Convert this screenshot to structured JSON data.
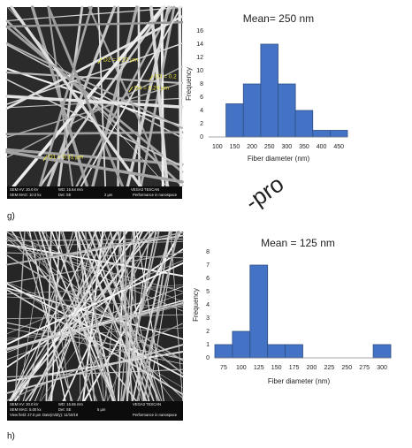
{
  "chart_data": [
    {
      "type": "bar",
      "title": "Mean= 250 nm",
      "x_label": "Fiber diameter (nm)",
      "y_label": "Frequency",
      "categories": [
        "100",
        "150",
        "200",
        "250",
        "300",
        "350",
        "400",
        "450"
      ],
      "values": [
        0,
        5,
        8,
        14,
        8,
        4,
        1,
        1
      ],
      "color": "#4472c4",
      "ylim": [
        0,
        16
      ],
      "yticks": [
        0,
        2,
        4,
        6,
        8,
        10,
        12,
        14,
        16
      ],
      "grid": false
    },
    {
      "type": "bar",
      "title": "Mean = 125 nm",
      "x_label": "Fiber diameter (nm)",
      "y_label": "Frequency",
      "categories": [
        "75",
        "100",
        "125",
        "150",
        "175",
        "200",
        "225",
        "250",
        "275",
        "300"
      ],
      "values": [
        1,
        2,
        7,
        1,
        1,
        0,
        0,
        0,
        0,
        1
      ],
      "color": "#4472c4",
      "ylim": [
        0,
        8
      ],
      "yticks": [
        0,
        1,
        2,
        3,
        4,
        5,
        6,
        7,
        8
      ],
      "grid": false
    }
  ],
  "panels": [
    {
      "label": "g)",
      "annotations": [
        "D2 = 0.27 µm",
        "D3 = 0.2",
        "D4 = 0.29 µm",
        "D1 = 0.31 µm"
      ],
      "info": [
        "SEM HV: 20.0 kV",
        "WD: 15.64 mm",
        "VEGA3 TESCAN",
        "SEM MAG: 10.0 kx",
        "Det: SE",
        "2 µm",
        "Performance in nanospace"
      ]
    },
    {
      "label": "h)",
      "annotations": [],
      "info": [
        "SEM HV: 20.0 kV",
        "WD: 15.65 mm",
        "VEGA3 TESCAN",
        "SEM MAG: 5.00 kx",
        "Det: SE",
        "5 µm",
        "View field: 27.0 µm",
        "Date(m/d/y): 11/10/19",
        "Performance in nanospace"
      ]
    }
  ],
  "watermark": "-pro"
}
